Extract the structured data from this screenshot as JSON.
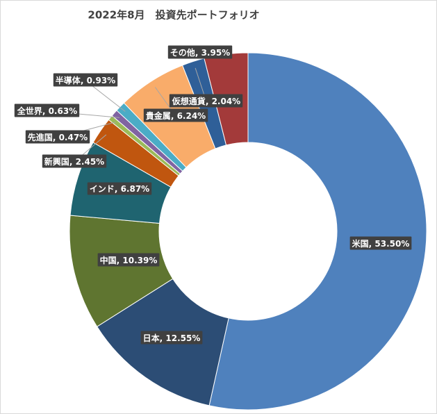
{
  "chart_data": {
    "type": "donut",
    "title": "2022年8月　投資先ポートフォリオ",
    "label_separator": ", ",
    "categories": [
      "米国",
      "日本",
      "中国",
      "インド",
      "新興国",
      "先進国",
      "全世界",
      "半導体",
      "貴金属",
      "仮想通貨",
      "その他"
    ],
    "values": [
      53.5,
      12.55,
      10.39,
      6.87,
      2.45,
      0.47,
      0.63,
      0.93,
      6.24,
      2.04,
      3.95
    ],
    "value_labels": [
      "53.50%",
      "12.55%",
      "10.39%",
      "6.87%",
      "2.45%",
      "0.47%",
      "0.63%",
      "0.93%",
      "6.24%",
      "2.04%",
      "3.95%"
    ],
    "colors": [
      "#4f81bd",
      "#2c4d75",
      "#5f7530",
      "#1f6470",
      "#c0560f",
      "#9bbb59",
      "#8064a2",
      "#4bacc6",
      "#f9ac6a",
      "#2f5f98",
      "#a33a3a"
    ]
  }
}
